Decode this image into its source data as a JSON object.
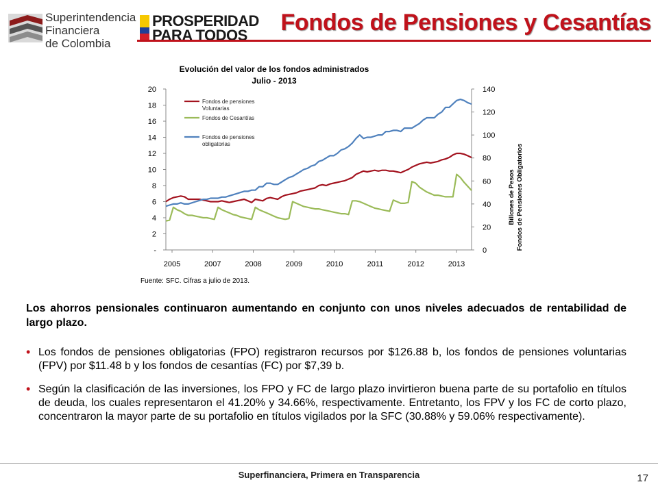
{
  "header": {
    "org_line1": "Superintendencia",
    "org_line2": "Financiera",
    "org_line3": "de Colombia",
    "pp_line1": "PROSPERIDAD",
    "pp_line2": "PARA TODOS",
    "page_title": "Fondos de Pensiones y Cesantías"
  },
  "colors": {
    "accent": "#c0121b",
    "fpv": "#a3131f",
    "fc": "#9bbb59",
    "fpo": "#4f81bd"
  },
  "chart_data": {
    "type": "line",
    "title_line1": "Evolución del valor de los fondos administrados",
    "title_line2": "Julio - 2013",
    "x_tick_labels": [
      "2005",
      "2007",
      "2008",
      "2009",
      "2010",
      "2011",
      "2012",
      "2013"
    ],
    "y_left_ticks": [
      "-",
      "2",
      "4",
      "6",
      "8",
      "10",
      "12",
      "14",
      "16",
      "18",
      "20"
    ],
    "y_left_range": [
      0,
      20
    ],
    "y_right_ticks": [
      "0",
      "20",
      "40",
      "60",
      "80",
      "100",
      "120",
      "140"
    ],
    "y_right_range": [
      0,
      140
    ],
    "y_right_label_line1": "Billones de Pesos",
    "y_right_label_line2": "Fondos de Pensiones Obligatorios",
    "legend": [
      {
        "line1": "Fondos de pensiones",
        "line2": "Voluntarias"
      },
      {
        "line1": "Fondos de Cesantías",
        "line2": ""
      },
      {
        "line1": "Fondos de pensiones",
        "line2": "obligatorias"
      }
    ],
    "series": [
      {
        "name": "Fondos de pensiones Voluntarias",
        "axis": "left",
        "values": [
          6.0,
          6.3,
          6.5,
          6.6,
          6.7,
          6.6,
          6.3,
          6.3,
          6.3,
          6.3,
          6.2,
          6.1,
          6.0,
          6.0,
          6.0,
          6.1,
          6.0,
          5.9,
          6.0,
          6.1,
          6.2,
          6.3,
          6.1,
          5.9,
          6.3,
          6.2,
          6.1,
          6.4,
          6.5,
          6.4,
          6.3,
          6.6,
          6.8,
          6.9,
          7.0,
          7.1,
          7.3,
          7.4,
          7.5,
          7.6,
          7.7,
          8.0,
          8.1,
          8.0,
          8.2,
          8.3,
          8.4,
          8.5,
          8.6,
          8.8,
          9.0,
          9.4,
          9.6,
          9.8,
          9.7,
          9.8,
          9.9,
          9.8,
          9.9,
          9.9,
          9.8,
          9.8,
          9.7,
          9.6,
          9.8,
          10.0,
          10.3,
          10.5,
          10.7,
          10.8,
          10.9,
          10.8,
          10.9,
          11.0,
          11.2,
          11.3,
          11.5,
          11.8,
          12.0,
          12.0,
          11.9,
          11.7,
          11.48
        ]
      },
      {
        "name": "Fondos de Cesantías",
        "axis": "left",
        "values": [
          3.6,
          3.7,
          5.3,
          5.0,
          4.8,
          4.5,
          4.3,
          4.3,
          4.2,
          4.1,
          4.0,
          4.0,
          3.9,
          3.8,
          5.3,
          5.0,
          4.8,
          4.6,
          4.4,
          4.3,
          4.1,
          4.0,
          3.9,
          3.8,
          5.3,
          5.0,
          4.8,
          4.6,
          4.4,
          4.2,
          4.0,
          3.9,
          3.8,
          3.9,
          6.0,
          5.8,
          5.6,
          5.4,
          5.3,
          5.2,
          5.1,
          5.1,
          5.0,
          4.9,
          4.8,
          4.7,
          4.6,
          4.5,
          4.5,
          4.4,
          6.1,
          6.1,
          6.0,
          5.8,
          5.6,
          5.4,
          5.2,
          5.1,
          5.0,
          4.9,
          4.8,
          6.2,
          6.0,
          5.8,
          5.8,
          5.9,
          8.5,
          8.3,
          7.8,
          7.5,
          7.2,
          7.0,
          6.8,
          6.8,
          6.7,
          6.6,
          6.6,
          6.6,
          9.4,
          9.0,
          8.4,
          7.9,
          7.39
        ]
      },
      {
        "name": "Fondos de pensiones obligatorias",
        "axis": "right",
        "values": [
          38,
          39,
          40,
          40,
          41,
          40,
          40,
          41,
          42,
          43,
          44,
          44,
          45,
          45,
          45,
          46,
          46,
          47,
          48,
          49,
          50,
          51,
          51,
          52,
          52,
          55,
          55,
          58,
          58,
          57,
          57,
          59,
          61,
          63,
          64,
          66,
          68,
          70,
          71,
          73,
          74,
          77,
          78,
          80,
          82,
          82,
          84,
          87,
          88,
          90,
          93,
          97,
          100,
          97,
          98,
          98,
          99,
          100,
          100,
          103,
          103,
          104,
          104,
          103,
          106,
          106,
          106,
          108,
          110,
          113,
          115,
          115,
          115,
          118,
          120,
          124,
          124,
          127,
          130,
          131,
          130,
          128,
          126.88
        ]
      }
    ]
  },
  "source_note": "Fuente: SFC. Cifras a julio de 2013.",
  "intro": "Los ahorros pensionales continuaron aumentando en conjunto con unos niveles adecuados de rentabilidad de largo plazo.",
  "bullets": [
    "Los fondos de pensiones obligatorias (FPO) registraron recursos por $126.88 b, los fondos de pensiones voluntarias (FPV) por $11.48 b y los fondos de cesantías (FC) por $7,39 b.",
    "Según la clasificación de las inversiones, los FPO y FC de largo plazo invirtieron buena parte de su portafolio en títulos de deuda, los cuales representaron el 41.20% y 34.66%, respectivamente. Entretanto, los FPV y los FC de corto plazo, concentraron la mayor parte de su portafolio en títulos vigilados por la SFC (30.88% y 59.06% respectivamente)."
  ],
  "footer": {
    "tagline": "Superfinanciera, Primera en Transparencia",
    "page_number": "17"
  }
}
